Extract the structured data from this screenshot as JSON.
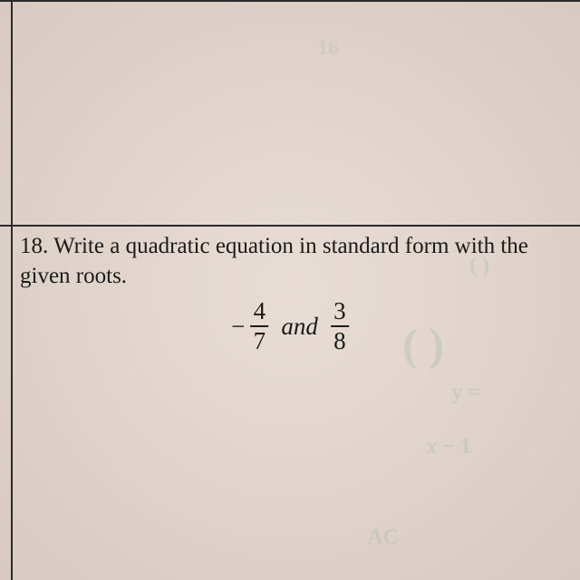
{
  "problem": {
    "number": "18.",
    "text": "Write a quadratic equation in standard form with the given roots.",
    "fraction1": {
      "sign": "−",
      "numerator": "4",
      "denominator": "7"
    },
    "conjunction": "and",
    "fraction2": {
      "numerator": "3",
      "denominator": "8"
    }
  },
  "styling": {
    "text_color": "#1a1a1a",
    "line_color": "#2a2a2a",
    "background_start": "#e8ddd5",
    "background_end": "#d8cac2",
    "ghost_color": "#3a8a7a",
    "font_family": "Times New Roman",
    "body_fontsize": 25,
    "math_fontsize": 27
  }
}
